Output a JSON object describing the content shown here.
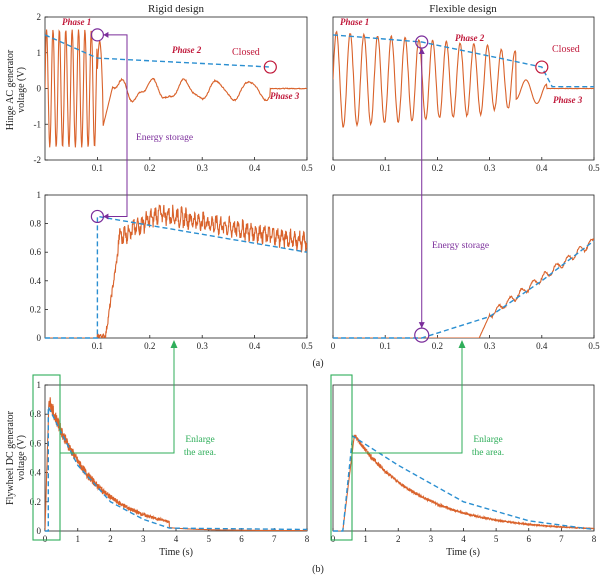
{
  "titles": {
    "left": "Rigid design",
    "right": "Flexible design"
  },
  "ylabels": {
    "top": [
      "Hinge AC generator",
      "voltage (V)"
    ],
    "bottom": [
      "Flywheel DC generator",
      "voltage (V)"
    ]
  },
  "xlabel_bottom": "Time (s)",
  "panel_labels": {
    "a": "(a)",
    "b": "(b)"
  },
  "annotations": {
    "phase1": "Phase 1",
    "phase2": "Phase 2",
    "phase3": "Phase 3",
    "closed": "Closed",
    "energy_storage": "Energy storage",
    "enlarge_line1": "Enlarge",
    "enlarge_line2": "the area."
  },
  "colors": {
    "signal": "#d9622b",
    "envelope": "#2b8fd1",
    "circle": "#c0183a",
    "storage": "#7b2d9b",
    "enlarge": "#2fae5a"
  },
  "chart_data": [
    {
      "id": "rigid-ac",
      "type": "line",
      "xlim": [
        0,
        0.5
      ],
      "ylim": [
        -2,
        2
      ],
      "xticks": [
        "0.1",
        "0.2",
        "0.3",
        "0.4",
        "0.5"
      ],
      "yticks": [
        "-2",
        "-1",
        "0",
        "1",
        "2"
      ],
      "envelope": {
        "x": [
          0,
          0.1,
          0.43
        ],
        "y": [
          1.5,
          0.85,
          0.6
        ]
      }
    },
    {
      "id": "flexible-ac",
      "type": "line",
      "xlim": [
        0,
        0.5
      ],
      "ylim": [
        -2,
        2
      ],
      "xticks": [
        "0",
        "0.1",
        "0.2",
        "0.3",
        "0.4",
        "0.5"
      ],
      "yticks": [],
      "envelope": {
        "x": [
          0,
          0.17,
          0.4,
          0.42,
          0.5
        ],
        "y": [
          1.5,
          1.3,
          0.6,
          0.05,
          0.05
        ]
      }
    },
    {
      "id": "rigid-dc-zoom",
      "type": "line",
      "xlim": [
        0,
        0.5
      ],
      "ylim": [
        0,
        1
      ],
      "xticks": [
        "0.1",
        "0.2",
        "0.3",
        "0.4",
        "0.5"
      ],
      "yticks": [
        "0",
        "0.2",
        "0.4",
        "0.6",
        "0.8",
        "1"
      ],
      "envelope": {
        "x": [
          0,
          0.1,
          0.1,
          0.5
        ],
        "y": [
          0,
          0,
          0.85,
          0.6
        ]
      }
    },
    {
      "id": "flexible-dc-zoom",
      "type": "line",
      "xlim": [
        0,
        0.5
      ],
      "ylim": [
        0,
        1
      ],
      "xticks": [
        "0",
        "0.1",
        "0.2",
        "0.3",
        "0.4",
        "0.5"
      ],
      "yticks": [],
      "envelope": {
        "x": [
          0,
          0.17,
          0.3,
          0.4,
          0.5
        ],
        "y": [
          0,
          0,
          0.15,
          0.4,
          0.68
        ]
      }
    },
    {
      "id": "rigid-dc-full",
      "type": "line",
      "xlim": [
        0,
        8
      ],
      "ylim": [
        0,
        1
      ],
      "xticks": [
        "0",
        "1",
        "2",
        "3",
        "4",
        "5",
        "6",
        "7",
        "8"
      ],
      "yticks": [
        "0",
        "0.2",
        "0.4",
        "0.6",
        "0.8",
        "1"
      ],
      "envelope": {
        "x": [
          0,
          0.1,
          0.1,
          1,
          2,
          3,
          3.8,
          8
        ],
        "y": [
          0,
          0,
          0.85,
          0.45,
          0.2,
          0.08,
          0.02,
          0.01
        ]
      }
    },
    {
      "id": "flexible-dc-full",
      "type": "line",
      "xlim": [
        0,
        8
      ],
      "ylim": [
        0,
        1
      ],
      "xticks": [
        "0",
        "1",
        "2",
        "3",
        "4",
        "5",
        "6",
        "7",
        "8"
      ],
      "yticks": [],
      "envelope": {
        "x": [
          0,
          0.3,
          0.6,
          2,
          4,
          6,
          8
        ],
        "y": [
          0,
          0,
          0.65,
          0.45,
          0.2,
          0.07,
          0.01
        ]
      }
    }
  ]
}
